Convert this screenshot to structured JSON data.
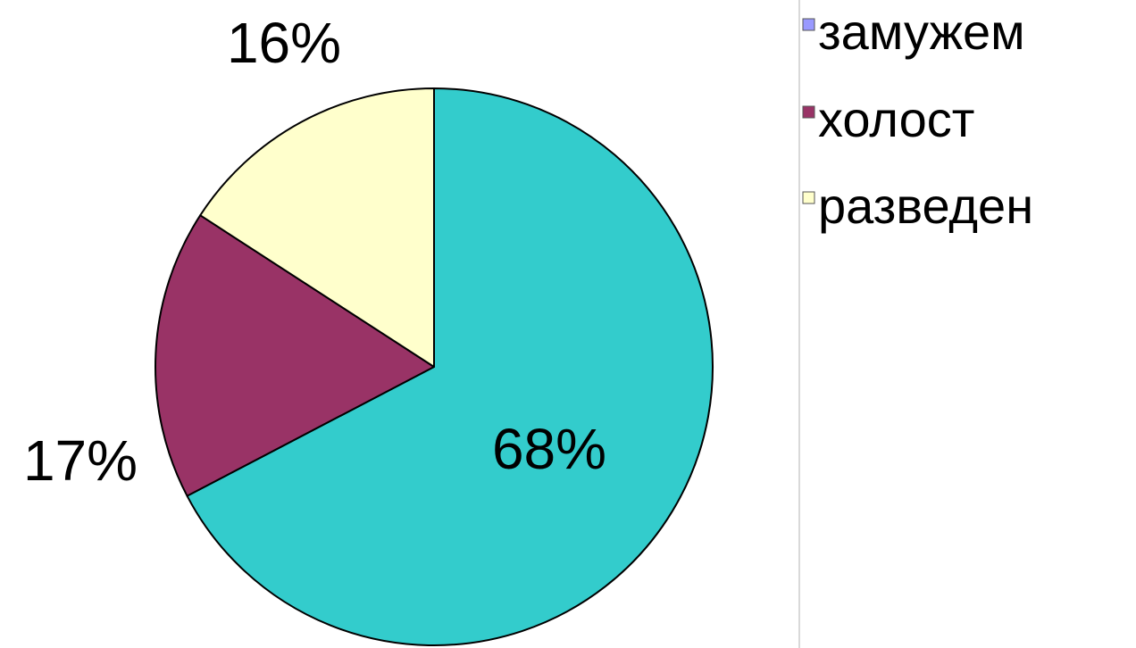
{
  "chart_data": {
    "type": "pie",
    "title": "",
    "categories": [
      "замужем",
      "холост",
      "разведен"
    ],
    "values": [
      68,
      17,
      16
    ],
    "labels": [
      "68%",
      "17%",
      "16%"
    ],
    "colors": [
      "#33CCCC",
      "#993366",
      "#FFFFCC"
    ],
    "legend_marker_colors": [
      "#9999FF",
      "#993366",
      "#FFFFCC"
    ],
    "legend_position": "right",
    "start_angle_deg": 0,
    "direction": "clockwise"
  }
}
